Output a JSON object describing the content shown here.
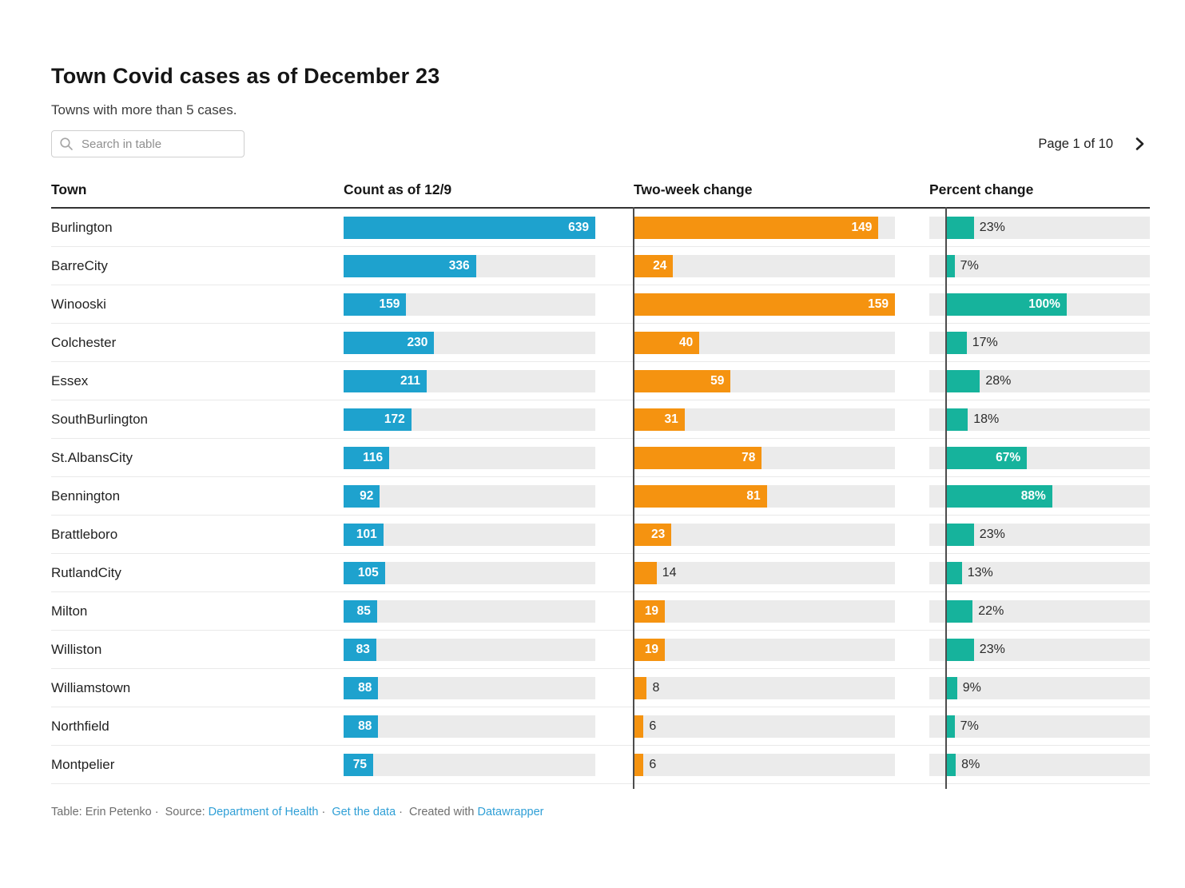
{
  "header": {
    "title": "Town Covid cases as of December 23",
    "subtitle": "Towns with more than 5 cases.",
    "search_placeholder": "Search in table",
    "search_value": "",
    "pagination_label": "Page 1 of 10"
  },
  "chart_data": {
    "type": "table",
    "title": "Town Covid cases as of December 23",
    "subtitle": "Towns with more than 5 cases.",
    "columns": [
      "Town",
      "Count as of 12/9",
      "Two-week change",
      "Percent change"
    ],
    "rows": [
      {
        "town": "Burlington",
        "count": 639,
        "two_week_change": 149,
        "percent_change": 23
      },
      {
        "town": "BarreCity",
        "count": 336,
        "two_week_change": 24,
        "percent_change": 7
      },
      {
        "town": "Winooski",
        "count": 159,
        "two_week_change": 159,
        "percent_change": 100
      },
      {
        "town": "Colchester",
        "count": 230,
        "two_week_change": 40,
        "percent_change": 17
      },
      {
        "town": "Essex",
        "count": 211,
        "two_week_change": 59,
        "percent_change": 28
      },
      {
        "town": "SouthBurlington",
        "count": 172,
        "two_week_change": 31,
        "percent_change": 18
      },
      {
        "town": "St.AlbansCity",
        "count": 116,
        "two_week_change": 78,
        "percent_change": 67
      },
      {
        "town": "Bennington",
        "count": 92,
        "two_week_change": 81,
        "percent_change": 88
      },
      {
        "town": "Brattleboro",
        "count": 101,
        "two_week_change": 23,
        "percent_change": 23
      },
      {
        "town": "RutlandCity",
        "count": 105,
        "two_week_change": 14,
        "percent_change": 13
      },
      {
        "town": "Milton",
        "count": 85,
        "two_week_change": 19,
        "percent_change": 22
      },
      {
        "town": "Williston",
        "count": 83,
        "two_week_change": 19,
        "percent_change": 23
      },
      {
        "town": "Williamstown",
        "count": 88,
        "two_week_change": 8,
        "percent_change": 9
      },
      {
        "town": "Northfield",
        "count": 88,
        "two_week_change": 6,
        "percent_change": 7
      },
      {
        "town": "Montpelier",
        "count": 75,
        "two_week_change": 6,
        "percent_change": 8
      }
    ],
    "layout": {
      "count_xlim": [
        0,
        639
      ],
      "two_week_xlim": [
        0,
        159
      ],
      "percent_xlim": [
        -14,
        169
      ],
      "count_color": "#1ea2ce",
      "two_week_color": "#f59310",
      "percent_color": "#16b39c",
      "track_color": "#ebebeb",
      "axis_color": "#4d4d4d",
      "legend": "none",
      "grid": "off"
    }
  },
  "footer": {
    "byline": "Table: Erin Petenko",
    "separator": "·",
    "source_label": "Source:",
    "source_link": "Department of Health",
    "get_data_link": "Get the data",
    "created_with_label": "Created with",
    "created_with_link": "Datawrapper"
  }
}
